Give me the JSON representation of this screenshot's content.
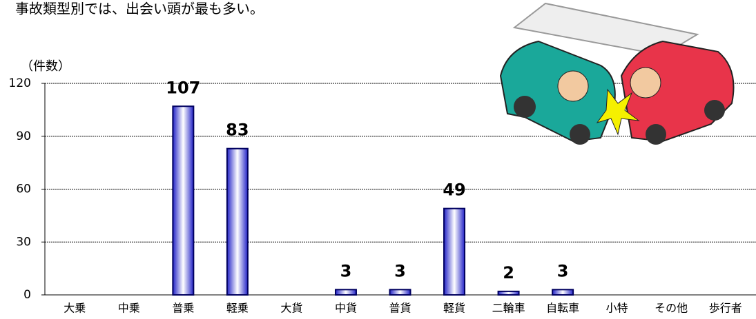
{
  "chart_data": {
    "type": "bar",
    "title": "事故類型別では、出会い頭が最も多い。",
    "y_label": "（件数）",
    "categories": [
      "大乗",
      "中乗",
      "普乗",
      "軽乗",
      "大貨",
      "中貨",
      "普貨",
      "軽貨",
      "二輪車",
      "自転車",
      "小特",
      "その他",
      "歩行者"
    ],
    "values": [
      0,
      0,
      107,
      83,
      0,
      3,
      3,
      49,
      2,
      3,
      0,
      0,
      0
    ],
    "color": "#2323c8",
    "ylim": [
      0,
      120
    ],
    "yticks": [
      0,
      30,
      60,
      90,
      120
    ],
    "grid": true
  }
}
